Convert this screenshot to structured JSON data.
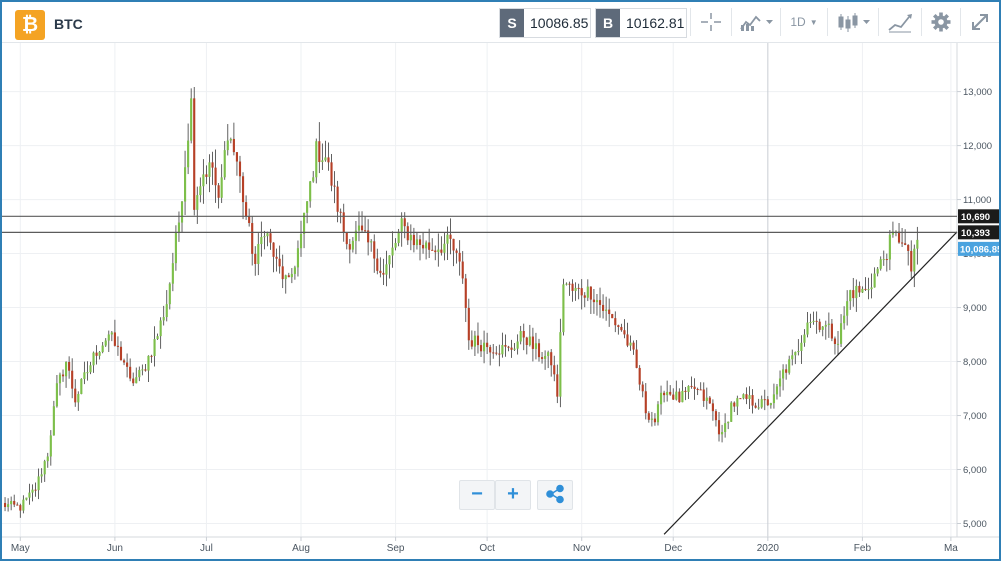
{
  "header": {
    "coin_glyph": "₿",
    "symbol": "BTC",
    "sell": {
      "tag": "S",
      "value": "10086.85"
    },
    "buy": {
      "tag": "B",
      "value": "10162.81"
    },
    "timeframe": "1D",
    "icons": [
      "crosshair-icon",
      "indicators-icon",
      "timeframe-dropdown",
      "candles-icon",
      "draw-icon",
      "gear-icon",
      "fullscreen-icon"
    ]
  },
  "controls": {
    "zoom_out": "−",
    "zoom_in": "+",
    "share_icon": "share-icon"
  },
  "colors": {
    "up": "#7dbf4a",
    "down": "#b64027",
    "accent": "#2f7fb5",
    "price_tag": "#4aa3df"
  },
  "chart_data": {
    "type": "candlestick",
    "x_ticks": [
      "May",
      "Jun",
      "Jul",
      "Aug",
      "Sep",
      "Oct",
      "Nov",
      "Dec",
      "2020",
      "Feb",
      "Ma"
    ],
    "y_ticks": [
      "5,000",
      "6,000",
      "7,000",
      "8,000",
      "9,000",
      "10,000",
      "11,000",
      "12,000",
      "13,000"
    ],
    "y_tick_values": [
      5000,
      6000,
      7000,
      8000,
      9000,
      10000,
      11000,
      12000,
      13000
    ],
    "ylim": [
      4750,
      13900
    ],
    "x_start": "2019-04-25",
    "x_end": "2020-03-03",
    "grid": true,
    "horizontal_lines": [
      {
        "value": 10690,
        "label": "10,690"
      },
      {
        "value": 10393,
        "label": "10,393"
      }
    ],
    "last_price": {
      "value": 10086.85,
      "label": "10,086.85"
    },
    "trendline": {
      "start": {
        "date": "2019-11-28",
        "value": 4800
      },
      "end": {
        "date": "2020-03-03",
        "value": 10400
      }
    },
    "close_anchors": [
      [
        "2019-04-25",
        5350
      ],
      [
        "2019-05-01",
        5300
      ],
      [
        "2019-05-06",
        5650
      ],
      [
        "2019-05-10",
        6300
      ],
      [
        "2019-05-13",
        7500
      ],
      [
        "2019-05-16",
        8000
      ],
      [
        "2019-05-19",
        7300
      ],
      [
        "2019-05-22",
        7700
      ],
      [
        "2019-05-26",
        8200
      ],
      [
        "2019-05-30",
        8500
      ],
      [
        "2019-06-04",
        8000
      ],
      [
        "2019-06-06",
        7600
      ],
      [
        "2019-06-10",
        7800
      ],
      [
        "2019-06-15",
        8500
      ],
      [
        "2019-06-18",
        9100
      ],
      [
        "2019-06-22",
        10600
      ],
      [
        "2019-06-26",
        12800
      ],
      [
        "2019-06-27",
        11000
      ],
      [
        "2019-06-30",
        11500
      ],
      [
        "2019-07-03",
        11600
      ],
      [
        "2019-07-05",
        10900
      ],
      [
        "2019-07-08",
        12300
      ],
      [
        "2019-07-11",
        11700
      ],
      [
        "2019-07-14",
        10700
      ],
      [
        "2019-07-17",
        9800
      ],
      [
        "2019-07-20",
        10500
      ],
      [
        "2019-07-24",
        9800
      ],
      [
        "2019-07-28",
        9400
      ],
      [
        "2019-08-01",
        10300
      ],
      [
        "2019-08-06",
        11900
      ],
      [
        "2019-08-09",
        11800
      ],
      [
        "2019-08-12",
        11100
      ],
      [
        "2019-08-16",
        10200
      ],
      [
        "2019-08-20",
        10400
      ],
      [
        "2019-08-24",
        10100
      ],
      [
        "2019-08-28",
        9600
      ],
      [
        "2019-09-03",
        10500
      ],
      [
        "2019-09-08",
        10200
      ],
      [
        "2019-09-13",
        10100
      ],
      [
        "2019-09-19",
        10200
      ],
      [
        "2019-09-23",
        9600
      ],
      [
        "2019-09-25",
        8400
      ],
      [
        "2019-10-01",
        8300
      ],
      [
        "2019-10-08",
        8200
      ],
      [
        "2019-10-13",
        8500
      ],
      [
        "2019-10-17",
        8200
      ],
      [
        "2019-10-22",
        8000
      ],
      [
        "2019-10-24",
        7400
      ],
      [
        "2019-10-26",
        9500
      ],
      [
        "2019-10-29",
        9300
      ],
      [
        "2019-11-04",
        9300
      ],
      [
        "2019-11-09",
        8900
      ],
      [
        "2019-11-14",
        8600
      ],
      [
        "2019-11-18",
        8100
      ],
      [
        "2019-11-22",
        7100
      ],
      [
        "2019-11-25",
        6900
      ],
      [
        "2019-11-28",
        7500
      ],
      [
        "2019-12-03",
        7300
      ],
      [
        "2019-12-08",
        7500
      ],
      [
        "2019-12-13",
        7200
      ],
      [
        "2019-12-17",
        6600
      ],
      [
        "2019-12-20",
        7200
      ],
      [
        "2019-12-25",
        7300
      ],
      [
        "2019-12-30",
        7200
      ],
      [
        "2020-01-03",
        7300
      ],
      [
        "2020-01-06",
        7800
      ],
      [
        "2020-01-10",
        8100
      ],
      [
        "2020-01-14",
        8800
      ],
      [
        "2020-01-19",
        8700
      ],
      [
        "2020-01-24",
        8400
      ],
      [
        "2020-01-28",
        9300
      ],
      [
        "2020-02-02",
        9300
      ],
      [
        "2020-02-07",
        9800
      ],
      [
        "2020-02-11",
        10300
      ],
      [
        "2020-02-14",
        10300
      ],
      [
        "2020-02-17",
        9700
      ],
      [
        "2020-02-18",
        10100
      ],
      [
        "2020-02-19",
        10087
      ]
    ]
  }
}
